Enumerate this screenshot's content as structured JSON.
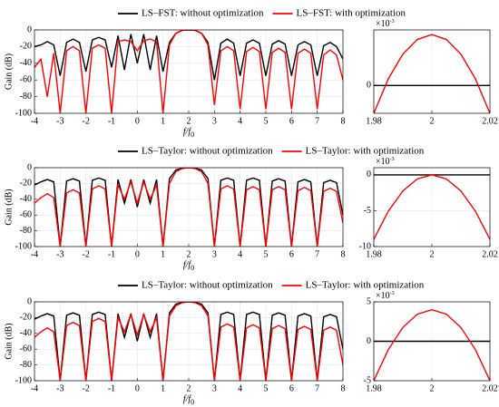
{
  "chart_data": [
    {
      "type": "line",
      "ylabel": "Gain (dB)",
      "xlabel": "f/f",
      "xlabel_sub": "0",
      "legend": "top",
      "grid": true,
      "xlim": [
        -4,
        8
      ],
      "xticks": [
        -4,
        -3,
        -2,
        -1,
        0,
        1,
        2,
        3,
        4,
        5,
        6,
        7,
        8
      ],
      "ylim": [
        -100,
        0
      ],
      "yticks": [
        -100,
        -80,
        -60,
        -40,
        -20,
        0
      ],
      "x": [
        -4,
        -3.75,
        -3.5,
        -3.25,
        -3,
        -2.75,
        -2.5,
        -2.25,
        -2,
        -1.75,
        -1.5,
        -1.25,
        -1,
        -0.75,
        -0.5,
        -0.25,
        0,
        0.25,
        0.5,
        0.75,
        1,
        1.25,
        1.5,
        1.75,
        2,
        2.25,
        2.5,
        2.75,
        3,
        3.25,
        3.5,
        3.75,
        4,
        4.25,
        4.5,
        4.75,
        5,
        5.25,
        5.5,
        5.75,
        6,
        6.25,
        6.5,
        6.75,
        7,
        7.25,
        7.5,
        7.75,
        8
      ],
      "series": [
        {
          "name": "LS–FST: without optimization",
          "color": "#000000",
          "values": [
            -20,
            -18,
            -14,
            -18,
            -55,
            -15,
            -11,
            -15,
            -50,
            -12,
            -9,
            -12,
            -45,
            -7,
            -48,
            -5,
            -40,
            -5,
            -48,
            -7,
            -50,
            -15,
            -4,
            -0.5,
            0,
            -0.5,
            -4,
            -15,
            -60,
            -16,
            -11,
            -16,
            -55,
            -16,
            -12,
            -16,
            -55,
            -17,
            -13,
            -17,
            -55,
            -18,
            -14,
            -18,
            -55,
            -19,
            -15,
            -20,
            -35
          ]
        },
        {
          "name": "LS–FST: with optimization",
          "color": "#ff0000",
          "values": [
            -45,
            -35,
            -80,
            -28,
            -100,
            -25,
            -20,
            -25,
            -100,
            -22,
            -18,
            -22,
            -100,
            -14,
            -12,
            -14,
            -25,
            -13,
            -11,
            -14,
            -100,
            -18,
            -4,
            -0.5,
            0,
            -0.5,
            -4,
            -18,
            -90,
            -25,
            -20,
            -25,
            -95,
            -26,
            -21,
            -26,
            -95,
            -27,
            -22,
            -27,
            -95,
            -28,
            -23,
            -28,
            -95,
            -30,
            -24,
            -30,
            -60
          ]
        }
      ]
    },
    {
      "type": "line",
      "grid": true,
      "y_multiplier": "×10",
      "y_multiplier_exp": "-3",
      "xlim": [
        1.98,
        2.02
      ],
      "xticks": [
        1.98,
        2,
        2.02
      ],
      "ylim": [
        -3,
        6
      ],
      "yticks": [
        0
      ],
      "x": [
        1.98,
        1.985,
        1.99,
        1.995,
        2,
        2.005,
        2.01,
        2.015,
        2.02
      ],
      "series": [
        {
          "color": "#000000",
          "values": [
            0,
            0,
            0,
            0,
            0,
            0,
            0,
            0,
            0
          ]
        },
        {
          "color": "#ff0000",
          "values": [
            -3,
            0.72,
            3.38,
            4.97,
            5.5,
            4.97,
            3.38,
            0.72,
            -3
          ]
        }
      ]
    },
    {
      "type": "line",
      "ylabel": "Gain (dB)",
      "xlabel": "f/f",
      "xlabel_sub": "0",
      "legend": "top",
      "grid": true,
      "xlim": [
        -4,
        8
      ],
      "xticks": [
        -4,
        -3,
        -2,
        -1,
        0,
        1,
        2,
        3,
        4,
        5,
        6,
        7,
        8
      ],
      "ylim": [
        -100,
        0
      ],
      "yticks": [
        -100,
        -80,
        -60,
        -40,
        -20,
        0
      ],
      "x": [
        -4,
        -3.75,
        -3.5,
        -3.25,
        -3,
        -2.75,
        -2.5,
        -2.25,
        -2,
        -1.75,
        -1.5,
        -1.25,
        -1,
        -0.75,
        -0.5,
        -0.25,
        0,
        0.25,
        0.5,
        0.75,
        1,
        1.25,
        1.5,
        1.75,
        2,
        2.25,
        2.5,
        2.75,
        3,
        3.25,
        3.5,
        3.75,
        4,
        4.25,
        4.5,
        4.75,
        5,
        5.25,
        5.5,
        5.75,
        6,
        6.25,
        6.5,
        6.75,
        7,
        7.25,
        7.5,
        7.75,
        8
      ],
      "series": [
        {
          "name": "LS–Taylor: without optimization",
          "color": "#000000",
          "values": [
            -22,
            -18,
            -15,
            -18,
            -100,
            -17,
            -14,
            -17,
            -100,
            -16,
            -13,
            -16,
            -100,
            -15,
            -45,
            -15,
            -50,
            -15,
            -45,
            -15,
            -100,
            -14,
            -3,
            -0.5,
            0,
            -0.5,
            -3,
            -14,
            -100,
            -16,
            -13,
            -16,
            -100,
            -16,
            -13,
            -16,
            -100,
            -17,
            -14,
            -17,
            -100,
            -18,
            -15,
            -18,
            -100,
            -19,
            -16,
            -19,
            -60
          ]
        },
        {
          "name": "LS–Taylor: with optimization",
          "color": "#ff0000",
          "values": [
            -45,
            -38,
            -33,
            -38,
            -100,
            -32,
            -28,
            -32,
            -100,
            -27,
            -23,
            -27,
            -100,
            -22,
            -40,
            -18,
            -45,
            -18,
            -40,
            -22,
            -100,
            -20,
            -5,
            -1,
            0,
            -1,
            -5,
            -20,
            -100,
            -27,
            -23,
            -27,
            -100,
            -28,
            -24,
            -28,
            -100,
            -28,
            -24,
            -28,
            -100,
            -29,
            -25,
            -29,
            -100,
            -30,
            -26,
            -30,
            -70
          ]
        }
      ]
    },
    {
      "type": "line",
      "grid": true,
      "y_multiplier": "×10",
      "y_multiplier_exp": "-3",
      "xlim": [
        1.98,
        2.02
      ],
      "xticks": [
        1.98,
        2,
        2.02
      ],
      "ylim": [
        -10,
        1
      ],
      "yticks": [
        -10,
        -5,
        0
      ],
      "x": [
        1.98,
        1.985,
        1.99,
        1.995,
        2,
        2.005,
        2.01,
        2.015,
        2.02
      ],
      "series": [
        {
          "color": "#000000",
          "values": [
            0,
            0,
            0,
            0,
            0,
            0,
            0,
            0,
            0
          ]
        },
        {
          "color": "#ff0000",
          "values": [
            -9,
            -5.06,
            -2.25,
            -0.56,
            0,
            -0.56,
            -2.25,
            -5.06,
            -9
          ]
        }
      ]
    },
    {
      "type": "line",
      "ylabel": "Gain (dB)",
      "xlabel": "f/f",
      "xlabel_sub": "0",
      "legend": "top",
      "grid": true,
      "xlim": [
        -4,
        8
      ],
      "xticks": [
        -4,
        -3,
        -2,
        -1,
        0,
        1,
        2,
        3,
        4,
        5,
        6,
        7,
        8
      ],
      "ylim": [
        -100,
        0
      ],
      "yticks": [
        -100,
        -80,
        -60,
        -40,
        -20,
        0
      ],
      "x": [
        -4,
        -3.75,
        -3.5,
        -3.25,
        -3,
        -2.75,
        -2.5,
        -2.25,
        -2,
        -1.75,
        -1.5,
        -1.25,
        -1,
        -0.75,
        -0.5,
        -0.25,
        0,
        0.25,
        0.5,
        0.75,
        1,
        1.25,
        1.5,
        1.75,
        2,
        2.25,
        2.5,
        2.75,
        3,
        3.25,
        3.5,
        3.75,
        4,
        4.25,
        4.5,
        4.75,
        5,
        5.25,
        5.5,
        5.75,
        6,
        6.25,
        6.5,
        6.75,
        7,
        7.25,
        7.5,
        7.75,
        8
      ],
      "series": [
        {
          "name": "LS–Taylor: without optimization",
          "color": "#000000",
          "values": [
            -22,
            -18,
            -15,
            -18,
            -100,
            -17,
            -14,
            -17,
            -100,
            -16,
            -13,
            -16,
            -100,
            -15,
            -45,
            -15,
            -50,
            -15,
            -45,
            -15,
            -100,
            -14,
            -3,
            -0.5,
            0,
            -0.5,
            -3,
            -14,
            -100,
            -16,
            -13,
            -16,
            -100,
            -16,
            -13,
            -16,
            -100,
            -17,
            -14,
            -17,
            -100,
            -18,
            -15,
            -18,
            -100,
            -19,
            -16,
            -19,
            -60
          ]
        },
        {
          "name": "LS–Taylor: with optimization",
          "color": "#ff0000",
          "values": [
            -45,
            -38,
            -33,
            -38,
            -100,
            -30,
            -26,
            -30,
            -100,
            -25,
            -21,
            -25,
            -100,
            -20,
            -38,
            -16,
            -42,
            -16,
            -38,
            -20,
            -100,
            -18,
            -5,
            -1,
            0,
            -1,
            -5,
            -18,
            -100,
            -32,
            -28,
            -32,
            -100,
            -33,
            -29,
            -33,
            -100,
            -34,
            -30,
            -34,
            -100,
            -35,
            -31,
            -35,
            -100,
            -36,
            -32,
            -36,
            -80
          ]
        }
      ]
    },
    {
      "type": "line",
      "grid": true,
      "y_multiplier": "×10",
      "y_multiplier_exp": "-3",
      "xlim": [
        1.98,
        2.02
      ],
      "xticks": [
        1.98,
        2,
        2.02
      ],
      "ylim": [
        -5,
        5
      ],
      "yticks": [
        -5,
        0,
        5
      ],
      "x": [
        1.98,
        1.985,
        1.99,
        1.995,
        2,
        2.005,
        2.01,
        2.015,
        2.02
      ],
      "series": [
        {
          "color": "#000000",
          "values": [
            0,
            0,
            0,
            0,
            0,
            0,
            0,
            0,
            0
          ]
        },
        {
          "color": "#ff0000",
          "values": [
            -5,
            -1.06,
            1.75,
            3.44,
            4,
            3.44,
            1.75,
            -1.06,
            -5
          ]
        }
      ]
    }
  ]
}
